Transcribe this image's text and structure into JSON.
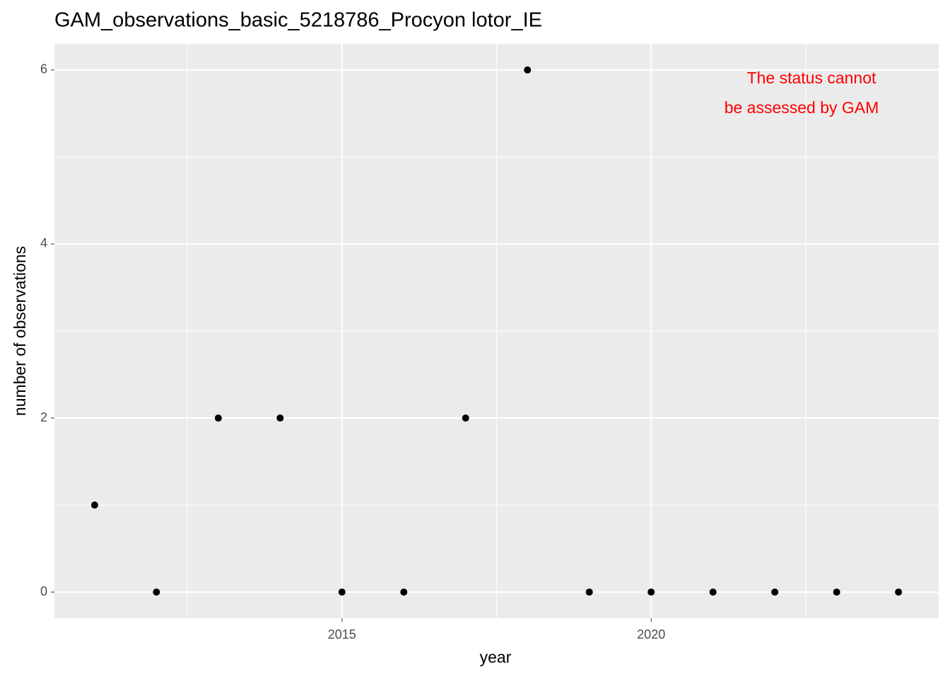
{
  "chart_data": {
    "type": "scatter",
    "title": "GAM_observations_basic_5218786_Procyon lotor_IE",
    "x_label": "year",
    "y_label": "number of observations",
    "annotation": [
      "The status cannot",
      "be assessed by GAM"
    ],
    "annotation_color": "#ff0000",
    "x": [
      2011,
      2012,
      2013,
      2014,
      2015,
      2016,
      2017,
      2018,
      2019,
      2020,
      2021,
      2022,
      2023,
      2024
    ],
    "values": [
      1,
      0,
      2,
      2,
      0,
      0,
      2,
      6,
      0,
      0,
      0,
      0,
      0,
      0
    ],
    "color": "#000000",
    "xlim": [
      2010.35,
      2024.65
    ],
    "xticks": [
      2015,
      2020
    ],
    "xminor": [
      2012.5,
      2017.5,
      2022.5
    ],
    "ylim": [
      -0.3,
      6.3
    ],
    "yticks": [
      0,
      2,
      4,
      6
    ],
    "yminor": [
      1,
      3,
      5
    ],
    "grid": true
  }
}
